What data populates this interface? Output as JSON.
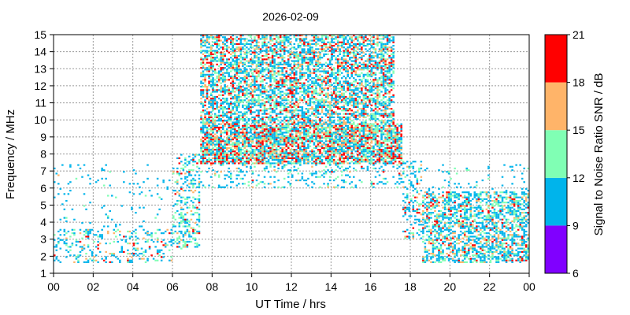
{
  "chart_data": {
    "type": "heatmap",
    "title": "2026-02-09",
    "xlabel": "UT Time / hrs",
    "ylabel": "Frequency / MHz",
    "xlim": [
      0,
      24
    ],
    "ylim": [
      1,
      15
    ],
    "x_ticks": [
      "00",
      "02",
      "04",
      "06",
      "08",
      "10",
      "12",
      "14",
      "16",
      "18",
      "20",
      "22",
      "00"
    ],
    "x_tick_values": [
      0,
      2,
      4,
      6,
      8,
      10,
      12,
      14,
      16,
      18,
      20,
      22,
      24
    ],
    "y_ticks": [
      "1",
      "2",
      "3",
      "4",
      "5",
      "6",
      "7",
      "8",
      "9",
      "10",
      "11",
      "12",
      "13",
      "14",
      "15"
    ],
    "y_tick_values": [
      1,
      2,
      3,
      4,
      5,
      6,
      7,
      8,
      9,
      10,
      11,
      12,
      13,
      14,
      15
    ],
    "grid": true,
    "colorbar": {
      "label": "Signal to Noise Ratio SNR / dB",
      "range": [
        6,
        21
      ],
      "ticks": [
        "6",
        "9",
        "12",
        "15",
        "18",
        "21"
      ],
      "bands": [
        {
          "min": 6,
          "max": 9,
          "color": "#8000ff"
        },
        {
          "min": 9,
          "max": 12,
          "color": "#00b4eb"
        },
        {
          "min": 12,
          "max": 15,
          "color": "#80ffb4"
        },
        {
          "min": 15,
          "max": 18,
          "color": "#ffb469"
        },
        {
          "min": 18,
          "max": 21,
          "color": "#ff0000"
        }
      ]
    },
    "regions": [
      {
        "t0": 0.0,
        "t1": 6.0,
        "f0": 1.6,
        "f1": 3.6,
        "density": 0.22,
        "snr_weights": [
          0,
          0.62,
          0.22,
          0.1,
          0.06
        ]
      },
      {
        "t0": 0.0,
        "t1": 6.0,
        "f0": 3.6,
        "f1": 7.4,
        "density": 0.04,
        "snr_weights": [
          0,
          0.92,
          0.06,
          0.02,
          0
        ]
      },
      {
        "t0": 6.0,
        "t1": 7.4,
        "f0": 2.4,
        "f1": 8.0,
        "density": 0.35,
        "snr_weights": [
          0,
          0.5,
          0.35,
          0.1,
          0.05
        ]
      },
      {
        "t0": 7.4,
        "t1": 17.6,
        "f0": 7.4,
        "f1": 9.8,
        "density": 0.78,
        "snr_weights": [
          0,
          0.35,
          0.25,
          0.17,
          0.23
        ]
      },
      {
        "t0": 7.4,
        "t1": 17.2,
        "f0": 9.8,
        "f1": 15.0,
        "density": 0.6,
        "snr_weights": [
          0,
          0.45,
          0.25,
          0.15,
          0.15
        ]
      },
      {
        "t0": 7.4,
        "t1": 17.6,
        "f0": 6.0,
        "f1": 7.4,
        "density": 0.18,
        "snr_weights": [
          0,
          0.65,
          0.25,
          0.07,
          0.03
        ]
      },
      {
        "t0": 17.6,
        "t1": 18.6,
        "f0": 3.0,
        "f1": 7.6,
        "density": 0.3,
        "snr_weights": [
          0,
          0.6,
          0.25,
          0.1,
          0.05
        ]
      },
      {
        "t0": 18.6,
        "t1": 24.0,
        "f0": 1.6,
        "f1": 5.8,
        "density": 0.55,
        "snr_weights": [
          0,
          0.52,
          0.25,
          0.15,
          0.08
        ]
      },
      {
        "t0": 18.6,
        "t1": 24.0,
        "f0": 5.8,
        "f1": 7.4,
        "density": 0.06,
        "snr_weights": [
          0,
          0.9,
          0.1,
          0,
          0
        ]
      }
    ]
  }
}
